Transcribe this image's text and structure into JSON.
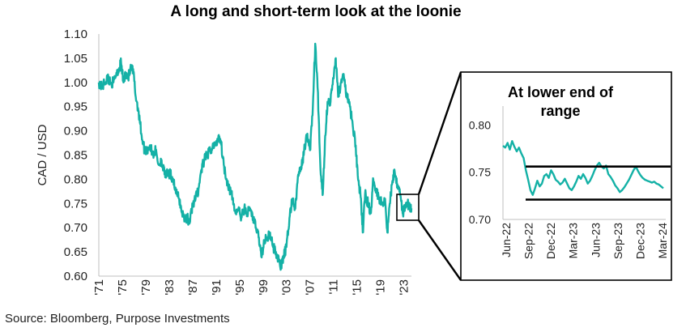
{
  "chart_data": [
    {
      "type": "line",
      "title": "A long and short-term look at the loonie",
      "ylabel": "CAD / USD",
      "xlabel": "",
      "ylim": [
        0.6,
        1.1
      ],
      "yticks": [
        "1.10",
        "1.05",
        "1.00",
        "0.95",
        "0.90",
        "0.85",
        "0.80",
        "0.75",
        "0.70",
        "0.65",
        "0.60"
      ],
      "xticks": [
        "'71",
        "'75",
        "'79",
        "'83",
        "'87",
        "'91",
        "'95",
        "'99",
        "'03",
        "'07",
        "'11",
        "'15",
        "'19",
        "'23"
      ],
      "xlim": [
        1971,
        2024.3
      ],
      "grid": false,
      "line_color": "#14b1a6",
      "series": [
        {
          "points": [
            [
              1971.0,
              1.0
            ],
            [
              1971.5,
              0.99
            ],
            [
              1972.0,
              1.0
            ],
            [
              1972.5,
              1.01
            ],
            [
              1973.0,
              1.0
            ],
            [
              1973.5,
              1.0
            ],
            [
              1974.0,
              1.02
            ],
            [
              1974.5,
              1.03
            ],
            [
              1974.8,
              1.04
            ],
            [
              1975.2,
              1.0
            ],
            [
              1975.6,
              1.02
            ],
            [
              1976.0,
              1.01
            ],
            [
              1976.5,
              1.03
            ],
            [
              1976.9,
              1.02
            ],
            [
              1977.3,
              0.97
            ],
            [
              1977.8,
              0.94
            ],
            [
              1978.3,
              0.89
            ],
            [
              1978.8,
              0.86
            ],
            [
              1979.2,
              0.86
            ],
            [
              1979.7,
              0.87
            ],
            [
              1980.2,
              0.85
            ],
            [
              1980.7,
              0.86
            ],
            [
              1981.2,
              0.83
            ],
            [
              1981.7,
              0.84
            ],
            [
              1982.2,
              0.81
            ],
            [
              1982.7,
              0.81
            ],
            [
              1983.2,
              0.81
            ],
            [
              1983.7,
              0.8
            ],
            [
              1984.2,
              0.77
            ],
            [
              1984.7,
              0.76
            ],
            [
              1985.2,
              0.73
            ],
            [
              1985.7,
              0.72
            ],
            [
              1986.1,
              0.72
            ],
            [
              1986.5,
              0.71
            ],
            [
              1987.0,
              0.75
            ],
            [
              1987.5,
              0.76
            ],
            [
              1988.0,
              0.78
            ],
            [
              1988.5,
              0.82
            ],
            [
              1989.0,
              0.84
            ],
            [
              1989.5,
              0.85
            ],
            [
              1990.0,
              0.86
            ],
            [
              1990.5,
              0.87
            ],
            [
              1991.0,
              0.87
            ],
            [
              1991.4,
              0.89
            ],
            [
              1991.8,
              0.88
            ],
            [
              1992.3,
              0.83
            ],
            [
              1992.8,
              0.8
            ],
            [
              1993.3,
              0.78
            ],
            [
              1993.8,
              0.76
            ],
            [
              1994.3,
              0.73
            ],
            [
              1994.8,
              0.74
            ],
            [
              1995.3,
              0.72
            ],
            [
              1995.8,
              0.74
            ],
            [
              1996.3,
              0.73
            ],
            [
              1996.8,
              0.74
            ],
            [
              1997.3,
              0.72
            ],
            [
              1997.8,
              0.7
            ],
            [
              1998.3,
              0.68
            ],
            [
              1998.7,
              0.64
            ],
            [
              1999.2,
              0.67
            ],
            [
              1999.7,
              0.68
            ],
            [
              2000.2,
              0.69
            ],
            [
              2000.7,
              0.66
            ],
            [
              2001.2,
              0.65
            ],
            [
              2001.7,
              0.63
            ],
            [
              2002.1,
              0.62
            ],
            [
              2002.5,
              0.64
            ],
            [
              2003.0,
              0.66
            ],
            [
              2003.5,
              0.72
            ],
            [
              2004.0,
              0.76
            ],
            [
              2004.5,
              0.74
            ],
            [
              2005.0,
              0.81
            ],
            [
              2005.5,
              0.82
            ],
            [
              2006.0,
              0.86
            ],
            [
              2006.5,
              0.89
            ],
            [
              2007.0,
              0.86
            ],
            [
              2007.5,
              0.95
            ],
            [
              2007.9,
              1.08
            ],
            [
              2008.3,
              0.99
            ],
            [
              2008.8,
              0.82
            ],
            [
              2009.2,
              0.77
            ],
            [
              2009.6,
              0.89
            ],
            [
              2010.0,
              0.96
            ],
            [
              2010.5,
              0.96
            ],
            [
              2011.0,
              1.01
            ],
            [
              2011.4,
              1.05
            ],
            [
              2011.8,
              0.97
            ],
            [
              2012.3,
              1.0
            ],
            [
              2012.8,
              1.01
            ],
            [
              2013.3,
              0.97
            ],
            [
              2013.8,
              0.95
            ],
            [
              2014.3,
              0.91
            ],
            [
              2014.8,
              0.87
            ],
            [
              2015.2,
              0.8
            ],
            [
              2015.6,
              0.77
            ],
            [
              2016.0,
              0.69
            ],
            [
              2016.4,
              0.77
            ],
            [
              2016.9,
              0.75
            ],
            [
              2017.4,
              0.73
            ],
            [
              2017.8,
              0.8
            ],
            [
              2018.3,
              0.78
            ],
            [
              2018.8,
              0.76
            ],
            [
              2019.3,
              0.75
            ],
            [
              2019.8,
              0.76
            ],
            [
              2020.2,
              0.69
            ],
            [
              2020.6,
              0.75
            ],
            [
              2021.0,
              0.79
            ],
            [
              2021.4,
              0.82
            ],
            [
              2021.9,
              0.79
            ],
            [
              2022.3,
              0.78
            ],
            [
              2022.8,
              0.73
            ],
            [
              2023.2,
              0.74
            ],
            [
              2023.6,
              0.75
            ],
            [
              2024.0,
              0.74
            ],
            [
              2024.3,
              0.74
            ]
          ]
        }
      ]
    },
    {
      "type": "line",
      "title": "At lower end of range",
      "title_lines": [
        "At lower end of",
        "range"
      ],
      "ylim": [
        0.7,
        0.82
      ],
      "yticks": [
        "0.80",
        "0.75",
        "0.70"
      ],
      "xticks": [
        "Jun-22",
        "Sep-22",
        "Dec-22",
        "Mar-23",
        "Jun-23",
        "Sep-23",
        "Dec-23",
        "Mar-24"
      ],
      "grid": false,
      "line_color": "#14b1a6",
      "range_lines": [
        0.756,
        0.721
      ],
      "series": [
        {
          "values": [
            0.778,
            0.776,
            0.781,
            0.774,
            0.783,
            0.777,
            0.772,
            0.776,
            0.77,
            0.765,
            0.752,
            0.742,
            0.731,
            0.726,
            0.733,
            0.741,
            0.735,
            0.738,
            0.746,
            0.748,
            0.744,
            0.752,
            0.748,
            0.742,
            0.74,
            0.737,
            0.739,
            0.743,
            0.738,
            0.733,
            0.731,
            0.735,
            0.74,
            0.746,
            0.743,
            0.748,
            0.744,
            0.738,
            0.741,
            0.746,
            0.752,
            0.757,
            0.76,
            0.756,
            0.754,
            0.757,
            0.748,
            0.745,
            0.741,
            0.736,
            0.733,
            0.729,
            0.731,
            0.734,
            0.738,
            0.742,
            0.747,
            0.752,
            0.756,
            0.751,
            0.747,
            0.744,
            0.742,
            0.741,
            0.74,
            0.739,
            0.74,
            0.738,
            0.737,
            0.735,
            0.733
          ]
        }
      ]
    }
  ],
  "source": "Source: Bloomberg, Purpose Investments"
}
